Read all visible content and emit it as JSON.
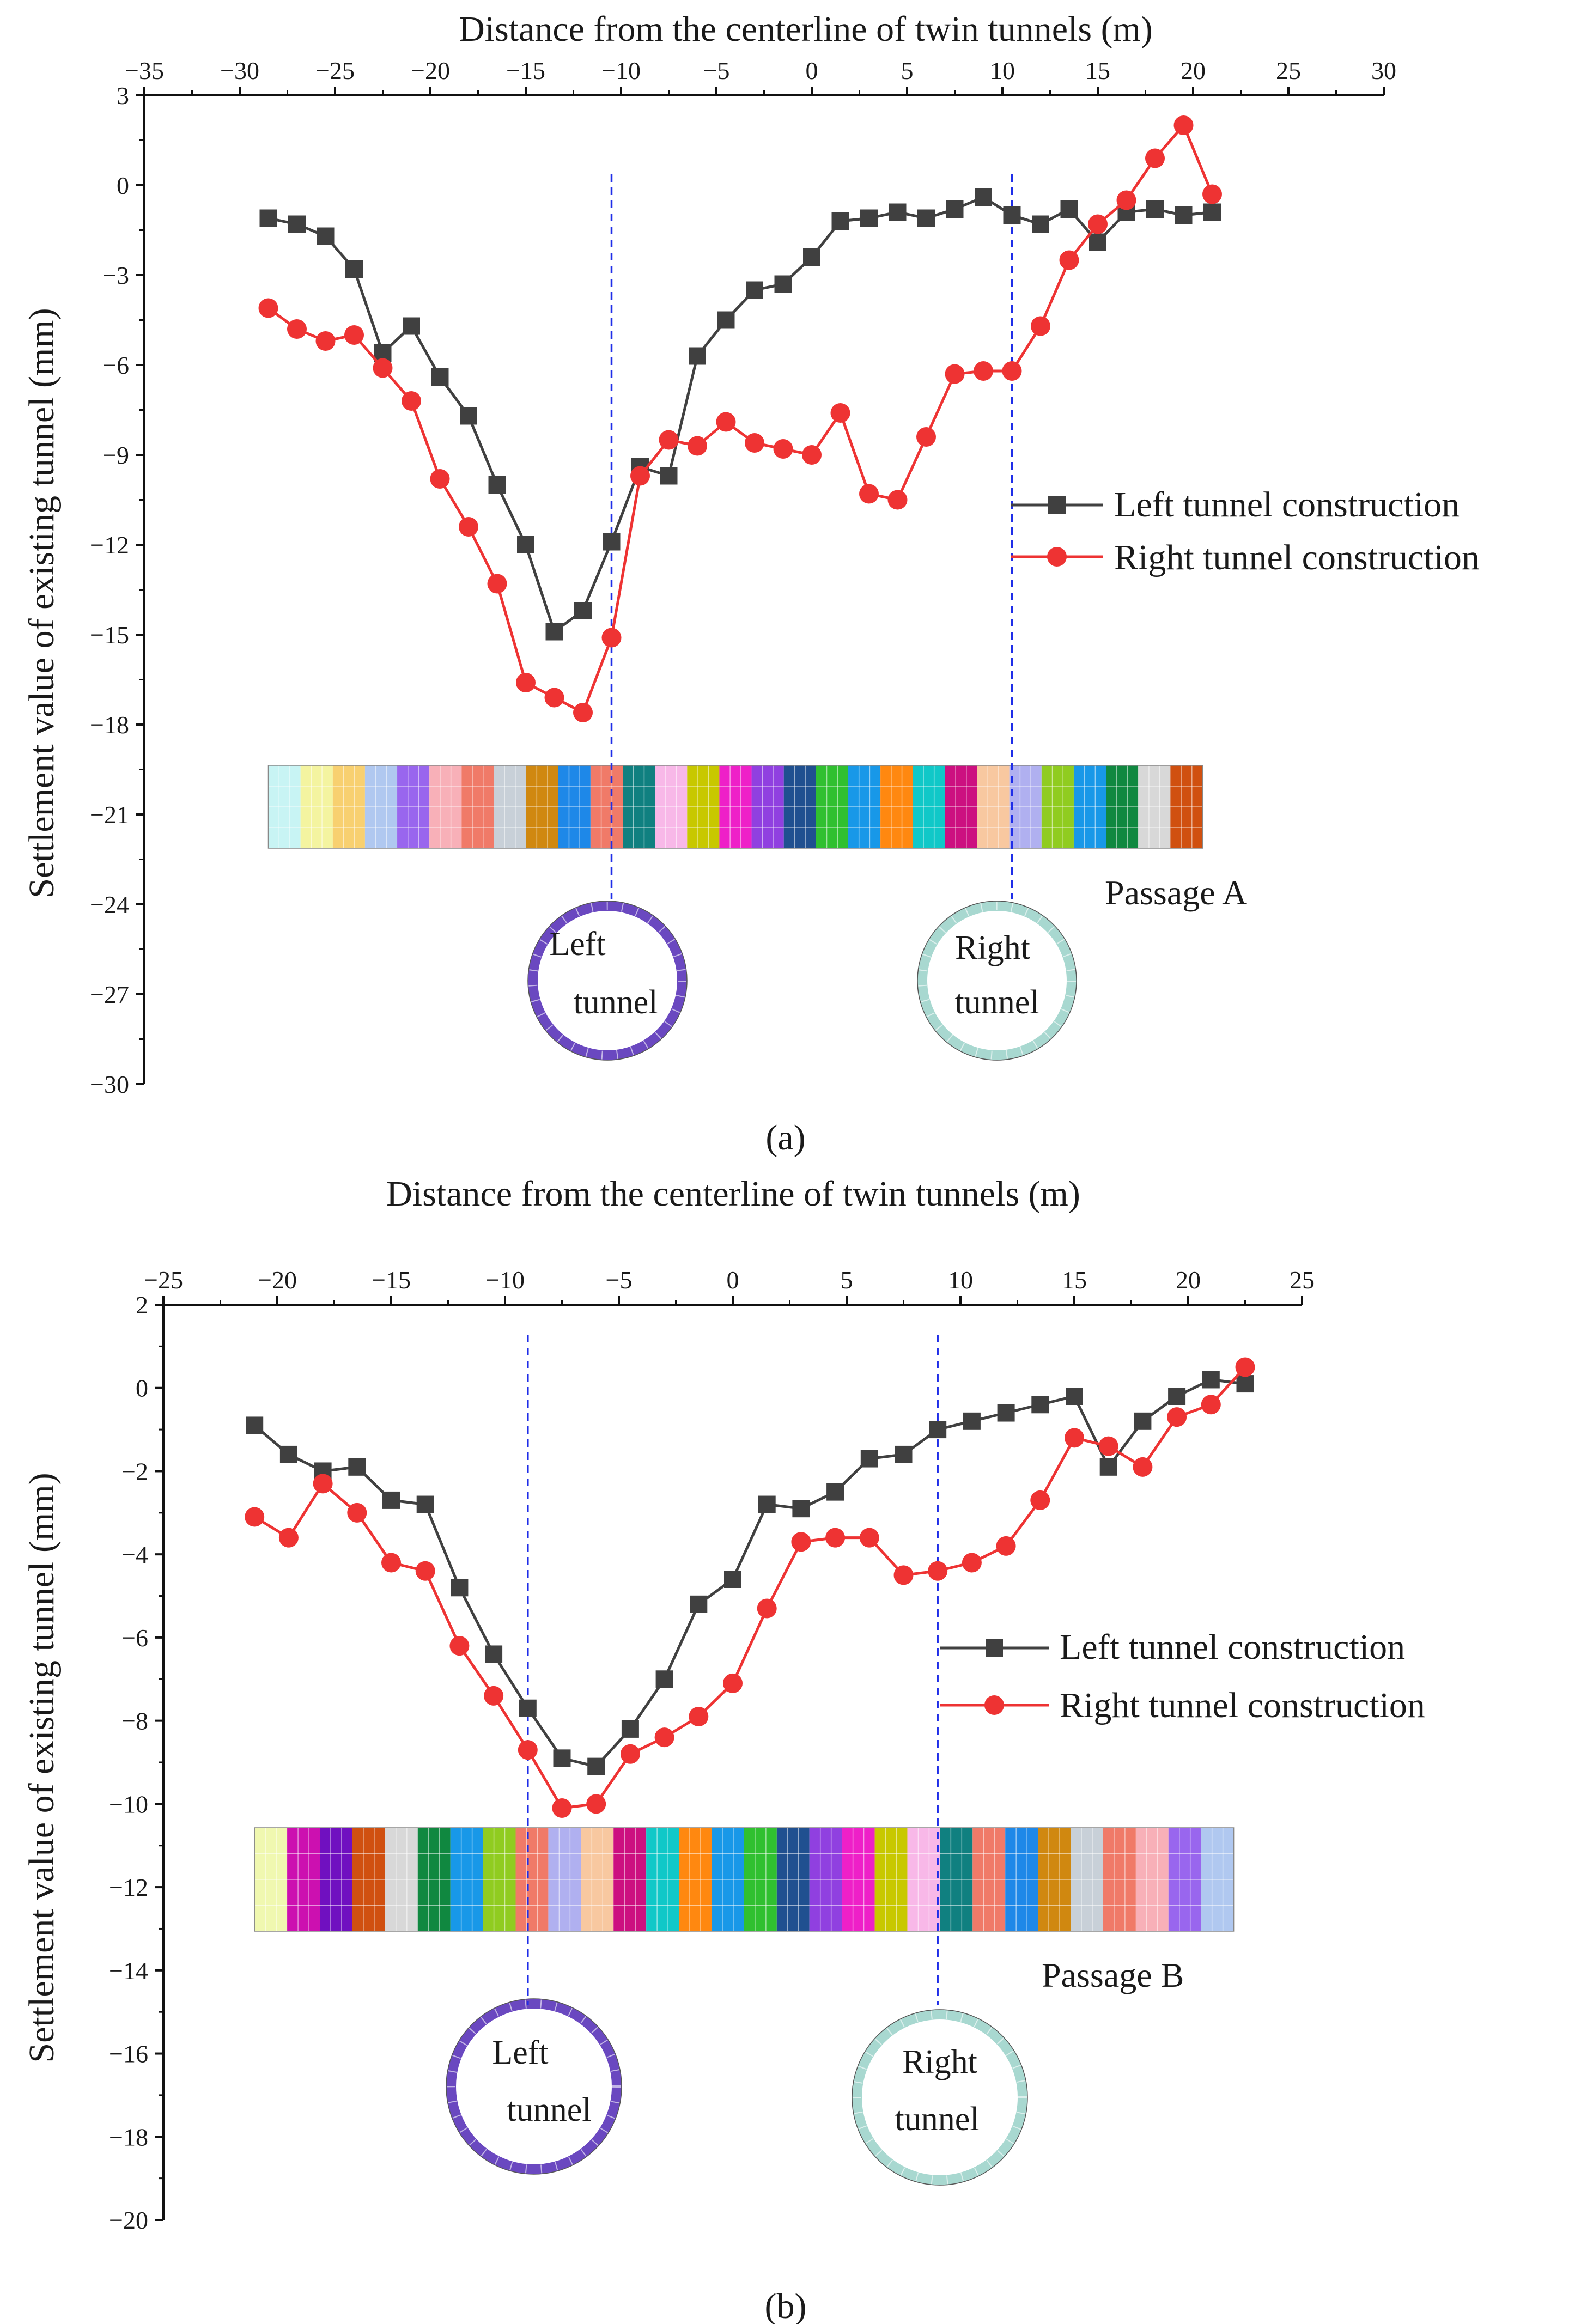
{
  "chart_data": [
    {
      "panel_label": "(a)",
      "type": "line",
      "xlabel": "Distance from the centerline of twin tunnels (m)",
      "ylabel": "Settlement value of existing tunnel (mm)",
      "xlim": [
        -35,
        30
      ],
      "ylim": [
        -30,
        3
      ],
      "xticks": [
        -35,
        -30,
        -25,
        -20,
        -15,
        -10,
        -5,
        0,
        5,
        10,
        15,
        20,
        25,
        30
      ],
      "yticks": [
        3,
        0,
        -3,
        -6,
        -9,
        -12,
        -15,
        -18,
        -21,
        -24,
        -27,
        -30
      ],
      "x_tick_labels": [
        "−35",
        "−30",
        "−25",
        "−20",
        "−15",
        "−10",
        "−5",
        "0",
        "5",
        "10",
        "15",
        "20",
        "25",
        "30"
      ],
      "y_tick_labels": [
        "3",
        "0",
        "−3",
        "−6",
        "−9",
        "−12",
        "−15",
        "−18",
        "−21",
        "−24",
        "−27",
        "−30"
      ],
      "series": [
        {
          "name": "Left tunnel construction",
          "color": "#404040",
          "marker": "square",
          "x": [
            -28.5,
            -27,
            -25.5,
            -24,
            -22.5,
            -21,
            -19.5,
            -18,
            -16.5,
            -15,
            -13.5,
            -12,
            -10.5,
            -9,
            -7.5,
            -6,
            -4.5,
            -3,
            -1.5,
            0,
            1.5,
            3,
            4.5,
            6,
            7.5,
            9,
            10.5,
            12,
            13.5,
            15,
            16.5,
            18,
            19.5,
            21
          ],
          "values": [
            -1.1,
            -1.3,
            -1.7,
            -2.8,
            -5.6,
            -4.7,
            -6.4,
            -7.7,
            -10.0,
            -12.0,
            -14.9,
            -14.2,
            -11.9,
            -9.4,
            -9.7,
            -5.7,
            -4.5,
            -3.5,
            -3.3,
            -2.4,
            -1.2,
            -1.1,
            -0.9,
            -1.1,
            -0.8,
            -0.4,
            -1.0,
            -1.3,
            -0.8,
            -1.9,
            -0.9,
            -0.8,
            -1.0,
            -0.9
          ]
        },
        {
          "name": "Right tunnel construction",
          "color": "#ee3333",
          "marker": "circle",
          "x": [
            -28.5,
            -27,
            -25.5,
            -24,
            -22.5,
            -21,
            -19.5,
            -18,
            -16.5,
            -15,
            -13.5,
            -12,
            -10.5,
            -9,
            -7.5,
            -6,
            -4.5,
            -3,
            -1.5,
            0,
            1.5,
            3,
            4.5,
            6,
            7.5,
            9,
            10.5,
            12,
            13.5,
            15,
            16.5,
            18,
            19.5,
            21
          ],
          "values": [
            -4.1,
            -4.8,
            -5.2,
            -5.0,
            -6.1,
            -7.2,
            -9.8,
            -11.4,
            -13.3,
            -16.6,
            -17.1,
            -17.6,
            -15.1,
            -9.7,
            -8.5,
            -8.7,
            -7.9,
            -8.6,
            -8.8,
            -9.0,
            -7.6,
            -10.3,
            -10.5,
            -8.4,
            -6.3,
            -6.2,
            -6.2,
            -4.7,
            -2.5,
            -1.3,
            -0.5,
            0.9,
            2.0,
            -0.3
          ]
        }
      ],
      "reference_lines_x": [
        -10.5,
        10.5
      ],
      "annotations": [
        "Passage A",
        "Left tunnel",
        "Right tunnel"
      ],
      "tunnel_labels": {
        "left_1": "Left",
        "left_2": "tunnel",
        "right_1": "Right",
        "right_2": "tunnel"
      },
      "passage_label": "Passage A",
      "passage_colors": [
        "#c8f4f4",
        "#f4f4a0",
        "#f8d070",
        "#b0c8f0",
        "#9966ee",
        "#f8b0b8",
        "#f07a68",
        "#c8d0d8",
        "#d08810",
        "#1e88e8",
        "#f07a68",
        "#108080",
        "#f8b8e8",
        "#c8c800",
        "#ee20c8",
        "#9040e0",
        "#205090",
        "#30c030",
        "#1898e8",
        "#ff8810",
        "#10c8c8",
        "#cc1080",
        "#f8c8a0",
        "#b0b0f0",
        "#90cc20",
        "#1898e8",
        "#108840",
        "#d8d8d8",
        "#d05010"
      ],
      "legend_position": "right-middle"
    },
    {
      "panel_label": "(b)",
      "type": "line",
      "xlabel": "Distance from the centerline of twin tunnels (m)",
      "ylabel": "Settlement value of existing tunnel (mm)",
      "xlim": [
        -25,
        25
      ],
      "ylim": [
        -20,
        2
      ],
      "xticks": [
        -25,
        -20,
        -15,
        -10,
        -5,
        0,
        5,
        10,
        15,
        20,
        25
      ],
      "yticks": [
        2,
        0,
        -2,
        -4,
        -6,
        -8,
        -10,
        -12,
        -14,
        -16,
        -18,
        -20
      ],
      "x_tick_labels": [
        "−25",
        "−20",
        "−15",
        "−10",
        "−5",
        "0",
        "5",
        "10",
        "15",
        "20",
        "25"
      ],
      "y_tick_labels": [
        "2",
        "0",
        "−2",
        "−4",
        "−6",
        "−8",
        "−10",
        "−12",
        "−14",
        "−16",
        "−18",
        "−20"
      ],
      "series": [
        {
          "name": "Left tunnel construction",
          "color": "#404040",
          "marker": "square",
          "x": [
            -21,
            -19.5,
            -18,
            -16.5,
            -15,
            -13.5,
            -12,
            -10.5,
            -9,
            -7.5,
            -6,
            -4.5,
            -3,
            -1.5,
            0,
            1.5,
            3,
            4.5,
            6,
            7.5,
            9,
            10.5,
            12,
            13.5,
            15,
            16.5,
            18,
            19.5,
            21,
            22.5
          ],
          "values": [
            -0.9,
            -1.6,
            -2.0,
            -1.9,
            -2.7,
            -2.8,
            -4.8,
            -6.4,
            -7.7,
            -8.9,
            -9.1,
            -8.2,
            -7.0,
            -5.2,
            -4.6,
            -2.8,
            -2.9,
            -2.5,
            -1.7,
            -1.6,
            -1.0,
            -0.8,
            -0.6,
            -0.4,
            -0.2,
            -1.9,
            -0.8,
            -0.2,
            0.2,
            0.1
          ]
        },
        {
          "name": "Right tunnel construction",
          "color": "#ee3333",
          "marker": "circle",
          "x": [
            -21,
            -19.5,
            -18,
            -16.5,
            -15,
            -13.5,
            -12,
            -10.5,
            -9,
            -7.5,
            -6,
            -4.5,
            -3,
            -1.5,
            0,
            1.5,
            3,
            4.5,
            6,
            7.5,
            9,
            10.5,
            12,
            13.5,
            15,
            16.5,
            18,
            19.5,
            21,
            22.5
          ],
          "values": [
            -3.1,
            -3.6,
            -2.3,
            -3.0,
            -4.2,
            -4.4,
            -6.2,
            -7.4,
            -8.7,
            -10.1,
            -10.0,
            -8.8,
            -8.4,
            -7.9,
            -7.1,
            -5.3,
            -3.7,
            -3.6,
            -3.6,
            -4.5,
            -4.4,
            -4.2,
            -3.8,
            -2.7,
            -1.2,
            -1.4,
            -1.9,
            -0.7,
            -0.4,
            0.5
          ]
        }
      ],
      "reference_lines_x": [
        -9,
        9
      ],
      "annotations": [
        "Passage B",
        "Left tunnel",
        "Right tunnel"
      ],
      "tunnel_labels": {
        "left_1": "Left",
        "left_2": "tunnel",
        "right_1": "Right",
        "right_2": "tunnel"
      },
      "passage_label": "Passage B",
      "passage_colors": [
        "#f0f8b0",
        "#cc10b0",
        "#7010c0",
        "#d05010",
        "#d8d8d8",
        "#108840",
        "#1898e8",
        "#90cc20",
        "#f07a68",
        "#b0b0f0",
        "#f8c8a0",
        "#cc1080",
        "#10c8c8",
        "#ff8810",
        "#1898e8",
        "#30c030",
        "#205090",
        "#9040e0",
        "#ee20c8",
        "#c8c800",
        "#f8b8e8",
        "#108080",
        "#f07a68",
        "#1e88e8",
        "#d08810",
        "#c8d0d8",
        "#f07a68",
        "#f8b0b8",
        "#9966ee",
        "#b0c8f0"
      ],
      "legend_position": "right-middle"
    }
  ]
}
